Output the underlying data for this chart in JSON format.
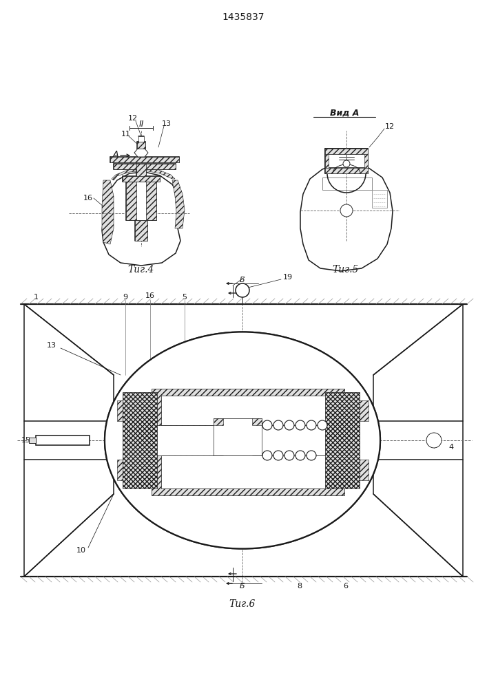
{
  "title": "1435837",
  "fig4_label": "Τиг.4",
  "fig5_label": "Τиг.5",
  "fig6_label": "Τиг.6",
  "vid_a_label": "Вид A",
  "background": "#ffffff",
  "lc": "#1a1a1a",
  "dc": "#666666",
  "hc": "#e0e0e0"
}
